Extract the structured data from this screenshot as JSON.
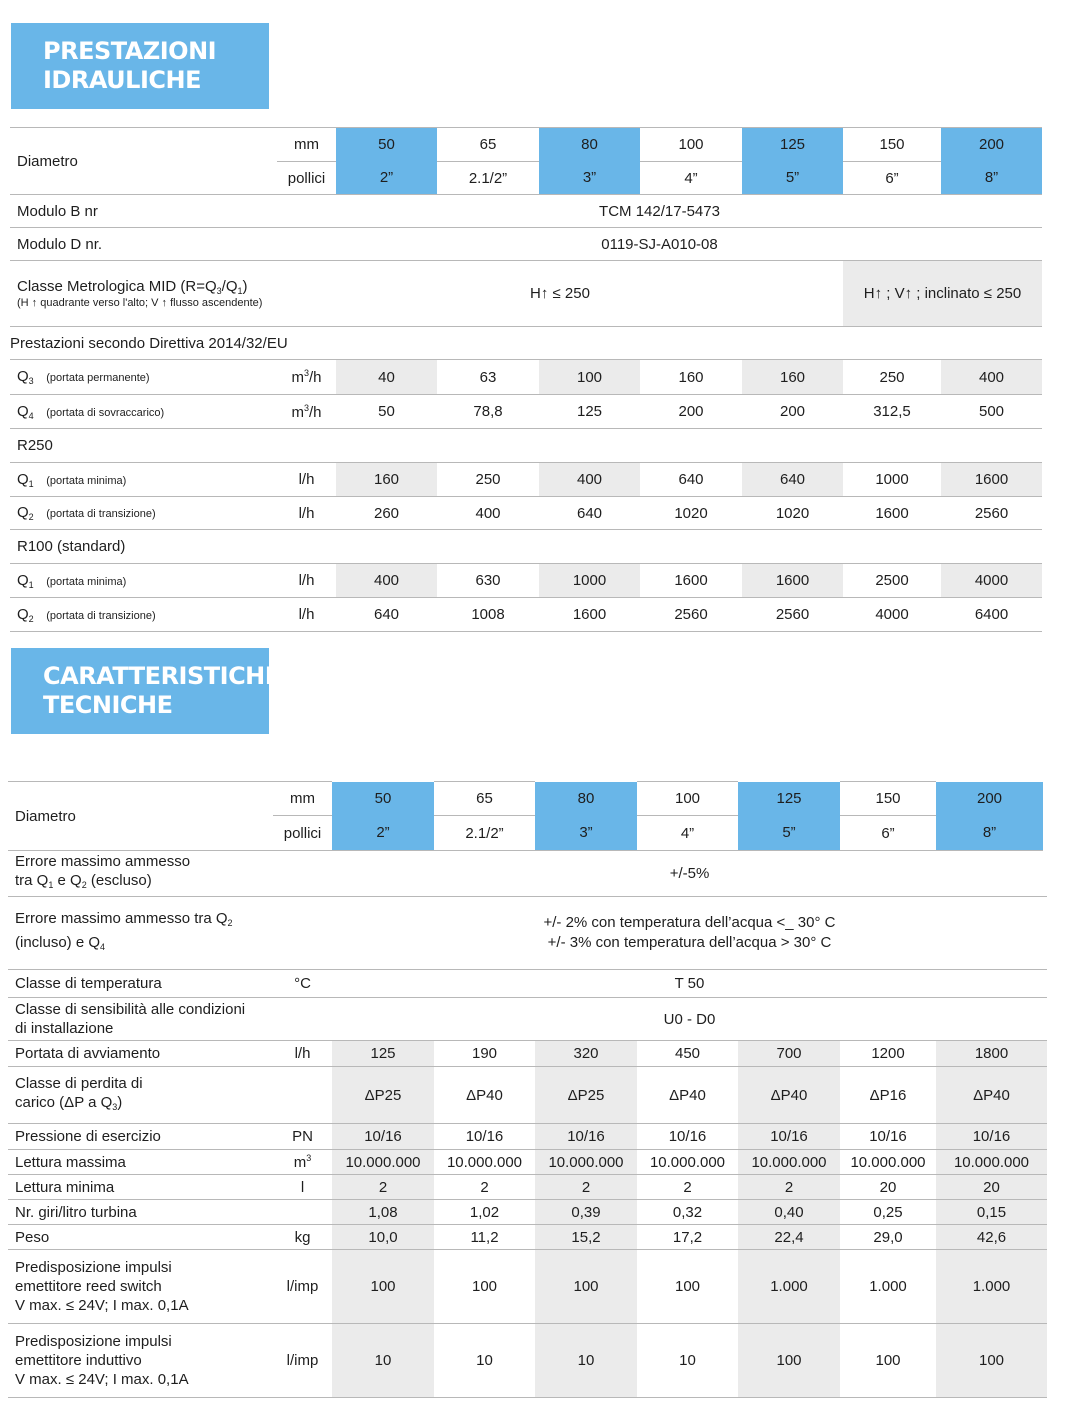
{
  "section1": {
    "title_line1": "PRESTAZIONI",
    "title_line2": "IDRAULICHE"
  },
  "section2": {
    "title_line1": "CARATTERISTICHE",
    "title_line2": "TECNICHE"
  },
  "diametro": {
    "label": "Diametro",
    "unit_mm": "mm",
    "unit_pollici": "pollici",
    "mm": [
      "50",
      "65",
      "80",
      "100",
      "125",
      "150",
      "200"
    ],
    "pollici": [
      "2”",
      "2.1/2”",
      "3”",
      "4”",
      "5”",
      "6”",
      "8”"
    ]
  },
  "table1": {
    "modulo_b": {
      "label": "Modulo B nr",
      "value": "TCM 142/17-5473"
    },
    "modulo_d": {
      "label": "Modulo D nr.",
      "value": "0119-SJ-A010-08"
    },
    "classe_metrologica": {
      "label": "Classe Metrologica  MID (R=Q",
      "label_sub1": "3",
      "label_mid": "/Q",
      "label_sub2": "1",
      "label_end": ")",
      "note": "(H ↑ quadrante verso l'alto; V ↑ flusso ascendente)",
      "value_left": "H↑ ≤ 250",
      "value_right": "H↑ ; V↑ ; inclinato ≤ 250"
    },
    "prestazioni_label": "Prestazioni secondo Direttiva 2014/32/EU",
    "q3": {
      "sym": "Q",
      "sub": "3",
      "desc": "(portata permanente)",
      "unit": "m",
      "unit_sup": "3",
      "unit_end": "/h",
      "values": [
        "40",
        "63",
        "100",
        "160",
        "160",
        "250",
        "400"
      ]
    },
    "q4": {
      "sym": "Q",
      "sub": "4",
      "desc": "(portata di sovraccarico)",
      "unit": "m",
      "unit_sup": "3",
      "unit_end": "/h",
      "values": [
        "50",
        "78,8",
        "125",
        "200",
        "200",
        "312,5",
        "500"
      ]
    },
    "r250_label": "R250",
    "r250_q1": {
      "sym": "Q",
      "sub": "1",
      "desc": "(portata minima)",
      "unit": "l/h",
      "values": [
        "160",
        "250",
        "400",
        "640",
        "640",
        "1000",
        "1600"
      ]
    },
    "r250_q2": {
      "sym": "Q",
      "sub": "2",
      "desc": "(portata di transizione)",
      "unit": "l/h",
      "values": [
        "260",
        "400",
        "640",
        "1020",
        "1020",
        "1600",
        "2560"
      ]
    },
    "r100_label": "R100 (standard)",
    "r100_q1": {
      "sym": "Q",
      "sub": "1",
      "desc": "(portata minima)",
      "unit": "l/h",
      "values": [
        "400",
        "630",
        "1000",
        "1600",
        "1600",
        "2500",
        "4000"
      ]
    },
    "r100_q2": {
      "sym": "Q",
      "sub": "2",
      "desc": "(portata di transizione)",
      "unit": "l/h",
      "values": [
        "640",
        "1008",
        "1600",
        "2560",
        "2560",
        "4000",
        "6400"
      ]
    }
  },
  "table2": {
    "errore1": {
      "line1": "Errore massimo ammesso",
      "line2a": "tra Q",
      "sub1": "1",
      "line2b": " e Q",
      "sub2": "2",
      "line2c": " (escluso)",
      "value": "+/-5%"
    },
    "errore2": {
      "line1a": "Errore massimo ammesso tra Q",
      "sub1": "2",
      "line2a": "(incluso) e Q",
      "sub2": "4",
      "value1": "+/- 2% con temperatura dell’acqua <_ 30° C",
      "value2": "+/- 3% con temperatura dell’acqua > 30° C"
    },
    "classe_temperatura": {
      "label": "Classe di temperatura",
      "unit": "°C",
      "value": "T 50"
    },
    "classe_sensibilita": {
      "line1": "Classe di sensibilità alle condizioni",
      "line2": "di installazione",
      "value": "U0 - D0"
    },
    "portata_avviamento": {
      "label": "Portata di avviamento",
      "unit": "l/h",
      "values": [
        "125",
        "190",
        "320",
        "450",
        "700",
        "1200",
        "1800"
      ]
    },
    "perdita_carico": {
      "line1": "Classe di perdita di",
      "line2a": "carico (ΔP a Q",
      "sub": "3",
      "line2b": ")",
      "values": [
        "ΔP25",
        "ΔP40",
        "ΔP25",
        "ΔP40",
        "ΔP40",
        "ΔP16",
        "ΔP40"
      ]
    },
    "pressione": {
      "label": "Pressione di esercizio",
      "unit": "PN",
      "values": [
        "10/16",
        "10/16",
        "10/16",
        "10/16",
        "10/16",
        "10/16",
        "10/16"
      ]
    },
    "lettura_massima": {
      "label": "Lettura massima",
      "unit": "m",
      "unit_sup": "3",
      "values": [
        "10.000.000",
        "10.000.000",
        "10.000.000",
        "10.000.000",
        "10.000.000",
        "10.000.000",
        "10.000.000"
      ]
    },
    "lettura_minima": {
      "label": "Lettura minima",
      "unit": "l",
      "values": [
        "2",
        "2",
        "2",
        "2",
        "2",
        "20",
        "20"
      ]
    },
    "giri_litro": {
      "label": "Nr. giri/litro turbina",
      "values": [
        "1,08",
        "1,02",
        "0,39",
        "0,32",
        "0,40",
        "0,25",
        "0,15"
      ]
    },
    "peso": {
      "label": "Peso",
      "unit": "kg",
      "values": [
        "10,0",
        "11,2",
        "15,2",
        "17,2",
        "22,4",
        "29,0",
        "42,6"
      ]
    },
    "reed": {
      "line1": "Predisposizione impulsi",
      "line2": "emettitore reed switch",
      "line3": "V max. ≤ 24V; I max. 0,1A",
      "unit": "l/imp",
      "values": [
        "100",
        "100",
        "100",
        "100",
        "1.000",
        "1.000",
        "1.000"
      ]
    },
    "induttivo": {
      "line1": "Predisposizione impulsi",
      "line2": "emettitore induttivo",
      "line3": "V max. ≤ 24V; I max. 0,1A",
      "unit": "l/imp",
      "values": [
        "10",
        "10",
        "10",
        "10",
        "100",
        "100",
        "100"
      ]
    }
  },
  "colors": {
    "accent_blue": "#69b6e8",
    "shade_gray": "#ebebeb",
    "rule_gray": "#b8b8b8"
  }
}
